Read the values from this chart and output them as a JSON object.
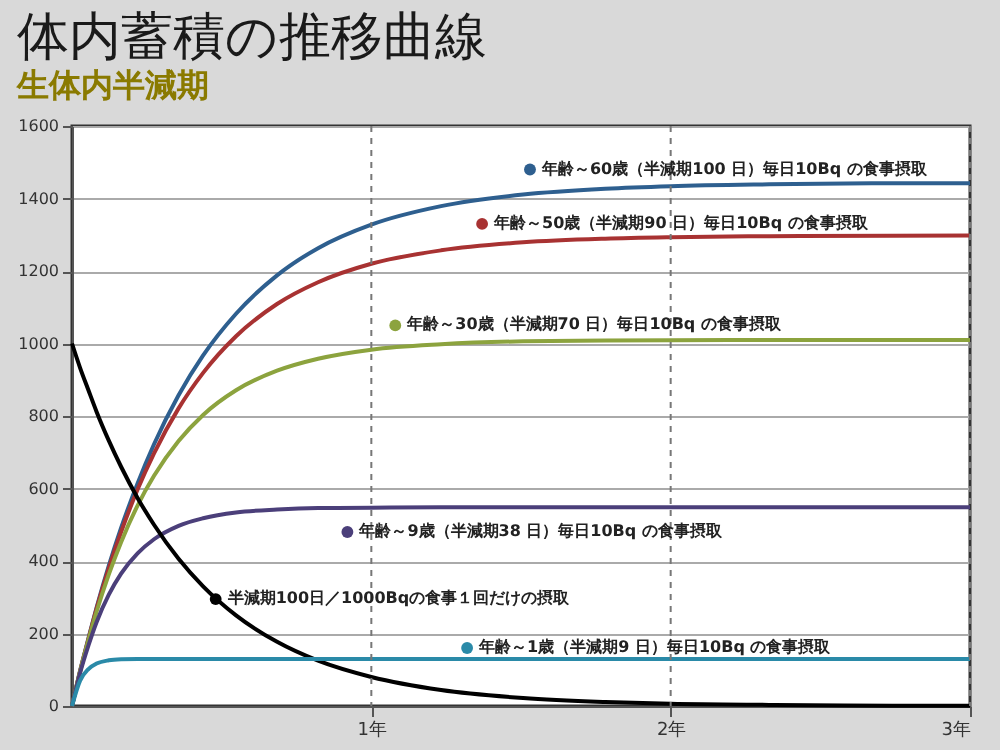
{
  "chart_data": {
    "type": "line",
    "title": "体内蓄積の推移曲線",
    "subtitle": "生体内半減期",
    "x": [
      0,
      0.027,
      0.055,
      0.082,
      0.123,
      0.164,
      0.219,
      0.274,
      0.356,
      0.438,
      0.548,
      0.685,
      0.822,
      1,
      1.233,
      1.507,
      1.781,
      2,
      2.329,
      2.74,
      3
    ],
    "series": [
      {
        "name": "年齢～60歳（半減期100 日）毎日10Bq の食事摂取",
        "color": "#2e5f8f",
        "values": [
          0,
          97,
          187,
          271,
          387,
          491,
          614,
          722,
          857,
          967,
          1082,
          1188,
          1263,
          1328,
          1379,
          1411,
          1427,
          1434,
          1439,
          1442,
          1442
        ]
      },
      {
        "name": "年齢～50歳（半減期90 日）毎日10Bq の食事摂取",
        "color": "#a83232",
        "values": [
          0,
          96,
          185,
          268,
          380,
          480,
          597,
          697,
          821,
          919,
          1020,
          1109,
          1169,
          1220,
          1257,
          1279,
          1289,
          1293,
          1296,
          1297,
          1298
        ]
      },
      {
        "name": "年齢～30歳（半減期70 日）毎日10Bq の食事摂取",
        "color": "#8ca33e",
        "values": [
          0,
          95,
          182,
          260,
          363,
          452,
          553,
          635,
          731,
          803,
          871,
          925,
          958,
          983,
          998,
          1006,
          1008,
          1009,
          1010,
          1010,
          1010
        ]
      },
      {
        "name": "年齢～9歳（半減期38 日）毎日10Bq の食事摂取",
        "color": "#4b3f7a",
        "values": [
          0,
          91,
          167,
          231,
          307,
          365,
          421,
          460,
          497,
          518,
          534,
          542,
          546,
          547,
          548,
          548,
          548,
          548,
          548,
          548,
          548
        ]
      },
      {
        "name": "半減期100日／1000Bqの食事１回だけの摂取",
        "color": "#000000",
        "values": [
          1000,
          933,
          871,
          812,
          732,
          660,
          574,
          500,
          406,
          330,
          250,
          177,
          125,
          80,
          44,
          22,
          11,
          6,
          3,
          1,
          1
        ]
      },
      {
        "name": "年齢～1歳（半減期9 日）毎日10Bq の食事摂取",
        "color": "#2a8aa8",
        "values": [
          0,
          70,
          102,
          117,
          126,
          129,
          130,
          130,
          130,
          130,
          130,
          130,
          130,
          130,
          130,
          130,
          130,
          130,
          130,
          130,
          130
        ]
      }
    ],
    "xlim": [
      0,
      3
    ],
    "xticks": [
      {
        "value": 1,
        "label": "1年"
      },
      {
        "value": 2,
        "label": "2年"
      },
      {
        "value": 3,
        "label": "3年"
      }
    ],
    "ylim": [
      0,
      1600
    ],
    "yticks": [
      0,
      200,
      400,
      600,
      800,
      1000,
      1200,
      1400,
      1600
    ],
    "grid": true,
    "legend": "top right",
    "marker": "none",
    "line_style": "solid"
  }
}
